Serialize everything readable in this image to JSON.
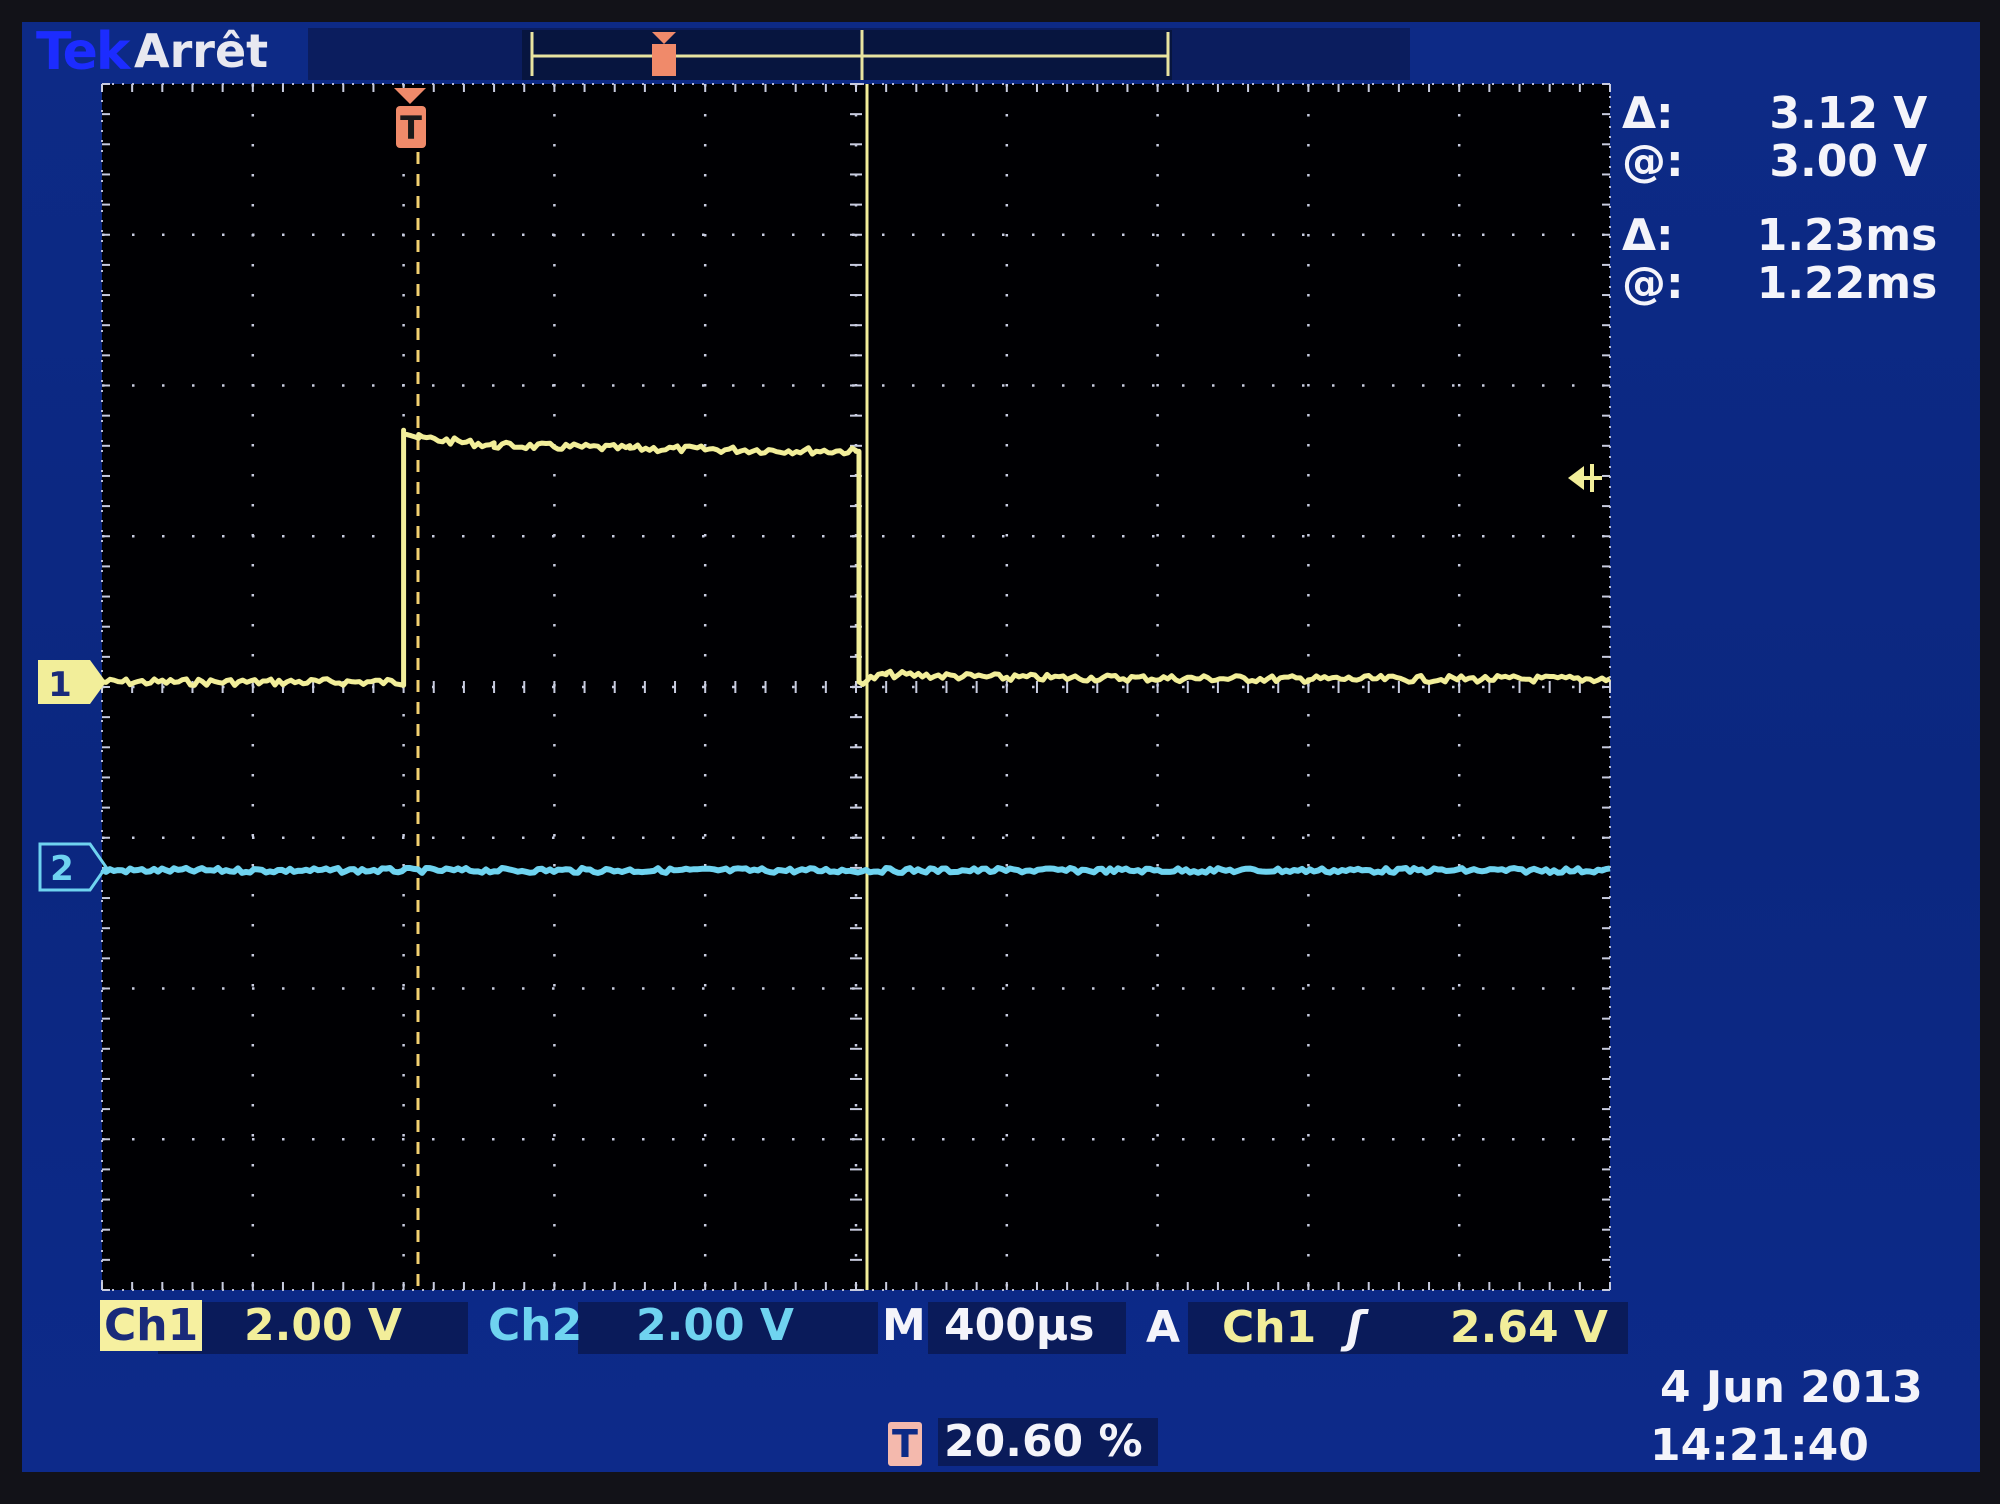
{
  "status": {
    "brand": "Tek",
    "acquisition_state": "Arrêt"
  },
  "markers": {
    "trigger_symbol": "T",
    "ch1_marker": "1",
    "ch2_marker": "2",
    "trigger_level_icon": "arrow-left-icon"
  },
  "cursor_readout": {
    "voltage_delta_label": "Δ:",
    "voltage_delta_value": "3.12 V",
    "voltage_at_label": "@:",
    "voltage_at_value": "3.00 V",
    "time_delta_label": "Δ:",
    "time_delta_value": "1.23ms",
    "time_at_label": "@:",
    "time_at_value": "1.22ms"
  },
  "channels": {
    "ch1_label": "Ch1",
    "ch1_scale": "2.00 V",
    "ch2_label": "Ch2",
    "ch2_scale": "2.00 V"
  },
  "timebase": {
    "label": "M",
    "value": "400µs"
  },
  "trigger": {
    "mode_label": "A",
    "source": "Ch1",
    "slope_symbol": "ʃ",
    "level": "2.64 V",
    "position_symbol": "T",
    "position_value": "20.60 %"
  },
  "datetime": {
    "date": "4 Jun  2013",
    "time": "14:21:40"
  },
  "colors": {
    "ch1": "#f2ee9a",
    "ch2": "#6fd3f0",
    "trigger": "#f08a6a",
    "screen": "#0d2a86"
  },
  "chart_data": {
    "type": "line",
    "x_divisions": 10,
    "y_divisions": 8,
    "grid": true,
    "series": [
      {
        "name": "Ch1",
        "x": [
          0,
          2.0,
          2.0,
          2.1,
          2.6,
          3.5,
          5.0,
          5.02,
          5.02,
          5.2,
          6.0,
          8.0,
          10.0
        ],
        "y": [
          0.0,
          0.0,
          1.67,
          1.62,
          1.57,
          1.55,
          1.53,
          1.53,
          0.0,
          0.05,
          0.03,
          0.02,
          0.02
        ]
      },
      {
        "name": "Ch2",
        "x": [
          0,
          10
        ],
        "y": [
          -1.25,
          -1.25
        ]
      }
    ]
  }
}
